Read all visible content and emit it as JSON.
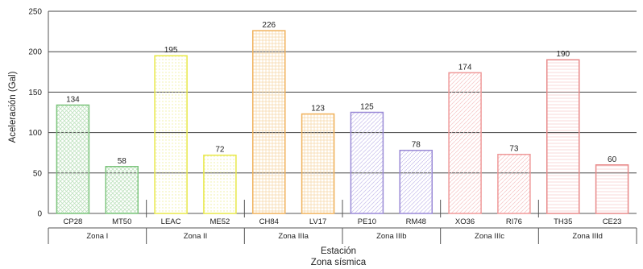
{
  "chart_data": {
    "type": "bar",
    "ylabel": "Aceleración (Gal)",
    "xlabel": "Estación",
    "xlabel2": "Zona sísmica",
    "ylim": [
      0,
      250
    ],
    "yticks": [
      0,
      50,
      100,
      150,
      200,
      250
    ],
    "grid": true,
    "categories": [
      "CP28",
      "MT50",
      "LEAC",
      "ME52",
      "CH84",
      "LV17",
      "PE10",
      "RM48",
      "XO36",
      "RI76",
      "TH35",
      "CE23"
    ],
    "values": [
      134,
      58,
      195,
      72,
      226,
      123,
      125,
      78,
      174,
      73,
      190,
      60
    ],
    "zones": [
      {
        "label": "Zona I",
        "stations": [
          "CP28",
          "MT50"
        ],
        "color": "#7cc47c"
      },
      {
        "label": "Zona II",
        "stations": [
          "LEAC",
          "ME52"
        ],
        "color": "#e9e94a"
      },
      {
        "label": "Zona IIIa",
        "stations": [
          "CH84",
          "LV17"
        ],
        "color": "#f0b25c"
      },
      {
        "label": "Zona IIIb",
        "stations": [
          "PE10",
          "RM48"
        ],
        "color": "#9a8ad6"
      },
      {
        "label": "Zona IIIc",
        "stations": [
          "XO36",
          "RI76"
        ],
        "color": "#ef9a9a"
      },
      {
        "label": "Zona IIId",
        "stations": [
          "TH35",
          "CE23"
        ],
        "color": "#e88a8a"
      }
    ]
  }
}
